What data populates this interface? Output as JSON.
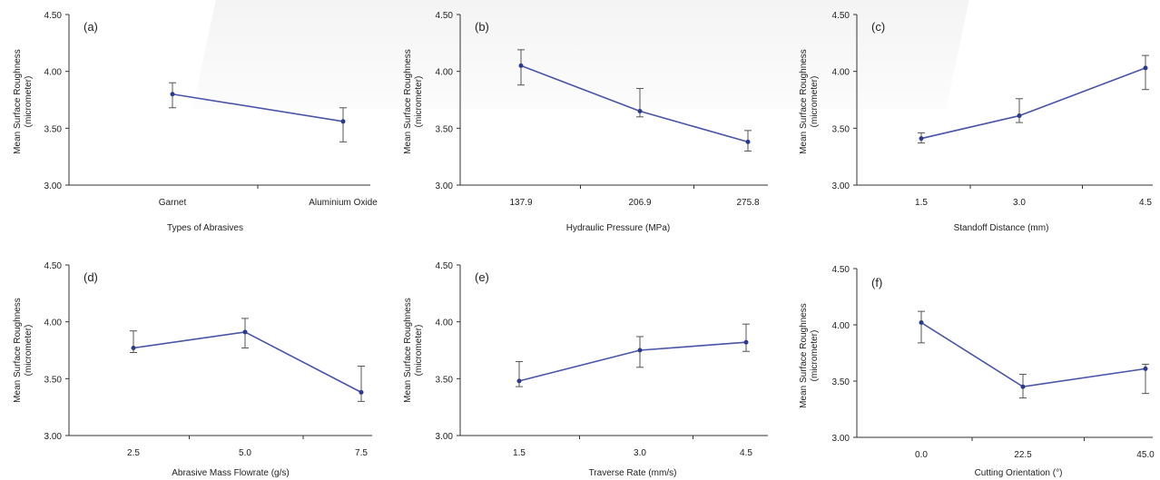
{
  "chart_data": [
    {
      "type": "line",
      "panel": "(a)",
      "categories": [
        "Garnet",
        "Aluminium Oxide"
      ],
      "values": [
        3.8,
        3.56
      ],
      "error_low": [
        3.68,
        3.38
      ],
      "error_high": [
        3.9,
        3.68
      ],
      "xlabel": "Types of Abrasives",
      "ylabel": [
        "Mean Surface Roughness",
        "(micrometer)"
      ],
      "yticks": [
        "4.50",
        "4.00",
        "3.50",
        "3.00"
      ],
      "ylim": [
        3.0,
        4.5
      ],
      "grid": false,
      "color": "#4a54a8"
    },
    {
      "type": "line",
      "panel": "(b)",
      "categories": [
        "137.9",
        "206.9",
        "275.8"
      ],
      "values": [
        4.05,
        3.65,
        3.38
      ],
      "error_low": [
        3.88,
        3.6,
        3.3
      ],
      "error_high": [
        4.19,
        3.85,
        3.48
      ],
      "xlabel": "Hydraulic Pressure (MPa)",
      "ylabel": [
        "Mean Surface Roughness",
        "(micrometer)"
      ],
      "yticks": [
        "4.50",
        "4.00",
        "3.50",
        "3.00"
      ],
      "ylim": [
        3.0,
        4.5
      ],
      "grid": false,
      "color": "#4a54a8"
    },
    {
      "type": "line",
      "panel": "(c)",
      "categories": [
        "1.5",
        "3.0",
        "4.5"
      ],
      "values": [
        3.41,
        3.61,
        4.03
      ],
      "error_low": [
        3.37,
        3.55,
        3.84
      ],
      "error_high": [
        3.46,
        3.76,
        4.14
      ],
      "xlabel": "Standoff Distance (mm)",
      "ylabel": [
        "Mean Surface Roughness",
        "(micrometer)"
      ],
      "yticks": [
        "4.50",
        "4.00",
        "3.50",
        "3.00"
      ],
      "ylim": [
        3.0,
        4.5
      ],
      "grid": false,
      "color": "#4a54a8"
    },
    {
      "type": "line",
      "panel": "(d)",
      "categories": [
        "2.5",
        "5.0",
        "7.5"
      ],
      "values": [
        3.77,
        3.91,
        3.38
      ],
      "error_low": [
        3.73,
        3.77,
        3.3
      ],
      "error_high": [
        3.92,
        4.03,
        3.61
      ],
      "xlabel": "Abrasive Mass Flowrate (g/s)",
      "ylabel": [
        "Mean Surface Roughness",
        "(micrometer)"
      ],
      "yticks": [
        "4.50",
        "4.00",
        "3.50",
        "3.00"
      ],
      "ylim": [
        3.0,
        4.5
      ],
      "grid": false,
      "color": "#4a54a8"
    },
    {
      "type": "line",
      "panel": "(e)",
      "categories": [
        "1.5",
        "3.0",
        "4.5"
      ],
      "values": [
        3.48,
        3.75,
        3.82
      ],
      "error_low": [
        3.43,
        3.6,
        3.74
      ],
      "error_high": [
        3.65,
        3.87,
        3.98
      ],
      "xlabel": "Traverse Rate (mm/s)",
      "ylabel": [
        "Mean Surface Roughness",
        "(micrometer)"
      ],
      "yticks": [
        "4.50",
        "4.00",
        "3.50",
        "3.00"
      ],
      "ylim": [
        3.0,
        4.5
      ],
      "grid": false,
      "color": "#4a54a8"
    },
    {
      "type": "line",
      "panel": "(f)",
      "categories": [
        "0.0",
        "22.5",
        "45.0"
      ],
      "values": [
        4.02,
        3.45,
        3.61
      ],
      "error_low": [
        3.84,
        3.35,
        3.39
      ],
      "error_high": [
        4.12,
        3.56,
        3.65
      ],
      "xlabel": "Cutting Orientation (°)",
      "ylabel": [
        "Mean Surface Roughness",
        "(micrometer)"
      ],
      "yticks": [
        "4.50",
        "4.00",
        "3.50",
        "3.00"
      ],
      "ylim": [
        3.0,
        4.5
      ],
      "grid": false,
      "color": "#4a54a8"
    }
  ]
}
